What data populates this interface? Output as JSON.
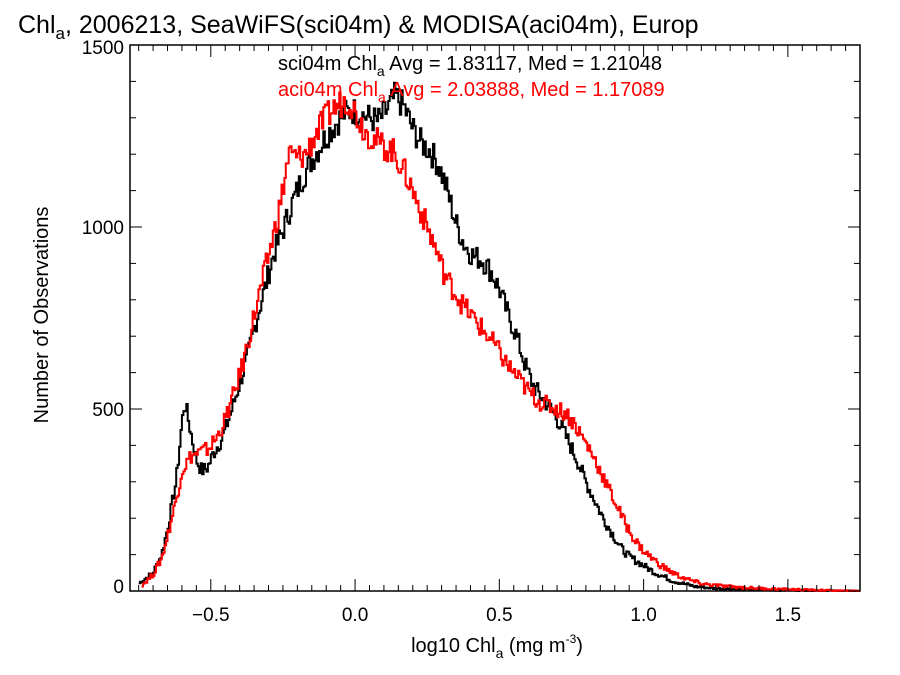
{
  "chart_data": {
    "type": "line",
    "title": {
      "pre": "Chl",
      "sub": "a",
      "post": ", 2006213, SeaWiFS(sci04m) & MODISA(aci04m), Europ"
    },
    "xlabel": {
      "pre": "log10 Chl",
      "sub": "a",
      "mid": " (mg m",
      "sup": "-3",
      "post": ")"
    },
    "ylabel": "Number of Observations",
    "xlim": [
      -0.78,
      1.75
    ],
    "ylim": [
      0,
      1500
    ],
    "xticks": [
      -0.5,
      0.0,
      0.5,
      1.0,
      1.5
    ],
    "xtick_labels": [
      "−0.5",
      "0.0",
      "0.5",
      "1.0",
      "1.5"
    ],
    "yticks": [
      0,
      500,
      1000,
      1500
    ],
    "ytick_labels": [
      "0",
      "500",
      "1000",
      "1500"
    ],
    "grid": false,
    "series": [
      {
        "id": "sci04m",
        "color": "#000000",
        "stat_text": {
          "pre": "sci04m Chl",
          "sub": "a",
          "post": " Avg = 1.83117, Med = 1.21048"
        },
        "points": [
          [
            -0.75,
            20
          ],
          [
            -0.7,
            50
          ],
          [
            -0.67,
            100
          ],
          [
            -0.65,
            170
          ],
          [
            -0.62,
            300
          ],
          [
            -0.6,
            460
          ],
          [
            -0.59,
            520
          ],
          [
            -0.57,
            440
          ],
          [
            -0.55,
            360
          ],
          [
            -0.53,
            330
          ],
          [
            -0.51,
            340
          ],
          [
            -0.49,
            380
          ],
          [
            -0.46,
            420
          ],
          [
            -0.43,
            490
          ],
          [
            -0.4,
            570
          ],
          [
            -0.37,
            650
          ],
          [
            -0.34,
            750
          ],
          [
            -0.31,
            840
          ],
          [
            -0.28,
            930
          ],
          [
            -0.25,
            990
          ],
          [
            -0.22,
            1060
          ],
          [
            -0.19,
            1120
          ],
          [
            -0.16,
            1170
          ],
          [
            -0.13,
            1210
          ],
          [
            -0.1,
            1250
          ],
          [
            -0.07,
            1280
          ],
          [
            -0.04,
            1310
          ],
          [
            -0.01,
            1320
          ],
          [
            0.02,
            1310
          ],
          [
            0.05,
            1300
          ],
          [
            0.08,
            1290
          ],
          [
            0.11,
            1320
          ],
          [
            0.14,
            1360
          ],
          [
            0.17,
            1330
          ],
          [
            0.2,
            1270
          ],
          [
            0.23,
            1230
          ],
          [
            0.26,
            1210
          ],
          [
            0.29,
            1170
          ],
          [
            0.32,
            1100
          ],
          [
            0.35,
            1010
          ],
          [
            0.38,
            950
          ],
          [
            0.41,
            920
          ],
          [
            0.44,
            910
          ],
          [
            0.47,
            880
          ],
          [
            0.5,
            830
          ],
          [
            0.53,
            760
          ],
          [
            0.56,
            700
          ],
          [
            0.59,
            620
          ],
          [
            0.62,
            560
          ],
          [
            0.65,
            530
          ],
          [
            0.68,
            500
          ],
          [
            0.71,
            460
          ],
          [
            0.74,
            410
          ],
          [
            0.77,
            360
          ],
          [
            0.8,
            300
          ],
          [
            0.83,
            250
          ],
          [
            0.86,
            200
          ],
          [
            0.89,
            160
          ],
          [
            0.92,
            120
          ],
          [
            0.95,
            95
          ],
          [
            0.98,
            80
          ],
          [
            1.01,
            65
          ],
          [
            1.04,
            50
          ],
          [
            1.07,
            40
          ],
          [
            1.1,
            28
          ],
          [
            1.14,
            20
          ],
          [
            1.18,
            12
          ],
          [
            1.25,
            7
          ],
          [
            1.35,
            4
          ],
          [
            1.5,
            2
          ],
          [
            1.62,
            1
          ],
          [
            1.75,
            0
          ]
        ]
      },
      {
        "id": "aci04m",
        "color": "#ff0000",
        "stat_text": {
          "pre": "aci04m Chl",
          "sub": "a",
          "post": " Avg = 2.03888, Med = 1.17089"
        },
        "points": [
          [
            -0.74,
            15
          ],
          [
            -0.7,
            45
          ],
          [
            -0.67,
            90
          ],
          [
            -0.65,
            150
          ],
          [
            -0.62,
            250
          ],
          [
            -0.6,
            330
          ],
          [
            -0.57,
            370
          ],
          [
            -0.54,
            380
          ],
          [
            -0.51,
            390
          ],
          [
            -0.48,
            420
          ],
          [
            -0.45,
            470
          ],
          [
            -0.42,
            540
          ],
          [
            -0.39,
            620
          ],
          [
            -0.36,
            720
          ],
          [
            -0.33,
            820
          ],
          [
            -0.3,
            920
          ],
          [
            -0.27,
            1020
          ],
          [
            -0.25,
            1100
          ],
          [
            -0.23,
            1200
          ],
          [
            -0.2,
            1190
          ],
          [
            -0.17,
            1200
          ],
          [
            -0.14,
            1250
          ],
          [
            -0.11,
            1290
          ],
          [
            -0.08,
            1320
          ],
          [
            -0.05,
            1340
          ],
          [
            -0.02,
            1350
          ],
          [
            0.01,
            1300
          ],
          [
            0.04,
            1260
          ],
          [
            0.07,
            1240
          ],
          [
            0.1,
            1220
          ],
          [
            0.13,
            1210
          ],
          [
            0.16,
            1170
          ],
          [
            0.19,
            1120
          ],
          [
            0.22,
            1060
          ],
          [
            0.25,
            1000
          ],
          [
            0.28,
            940
          ],
          [
            0.31,
            870
          ],
          [
            0.34,
            830
          ],
          [
            0.37,
            790
          ],
          [
            0.4,
            760
          ],
          [
            0.43,
            730
          ],
          [
            0.46,
            700
          ],
          [
            0.49,
            670
          ],
          [
            0.52,
            630
          ],
          [
            0.55,
            600
          ],
          [
            0.58,
            570
          ],
          [
            0.61,
            540
          ],
          [
            0.64,
            520
          ],
          [
            0.67,
            510
          ],
          [
            0.7,
            500
          ],
          [
            0.73,
            490
          ],
          [
            0.76,
            460
          ],
          [
            0.79,
            420
          ],
          [
            0.82,
            380
          ],
          [
            0.85,
            330
          ],
          [
            0.88,
            280
          ],
          [
            0.91,
            230
          ],
          [
            0.94,
            180
          ],
          [
            0.97,
            140
          ],
          [
            1.0,
            110
          ],
          [
            1.03,
            90
          ],
          [
            1.06,
            70
          ],
          [
            1.09,
            55
          ],
          [
            1.12,
            42
          ],
          [
            1.16,
            30
          ],
          [
            1.2,
            20
          ],
          [
            1.28,
            13
          ],
          [
            1.38,
            8
          ],
          [
            1.48,
            5
          ],
          [
            1.58,
            3
          ],
          [
            1.68,
            1
          ],
          [
            1.75,
            0
          ]
        ]
      }
    ]
  }
}
